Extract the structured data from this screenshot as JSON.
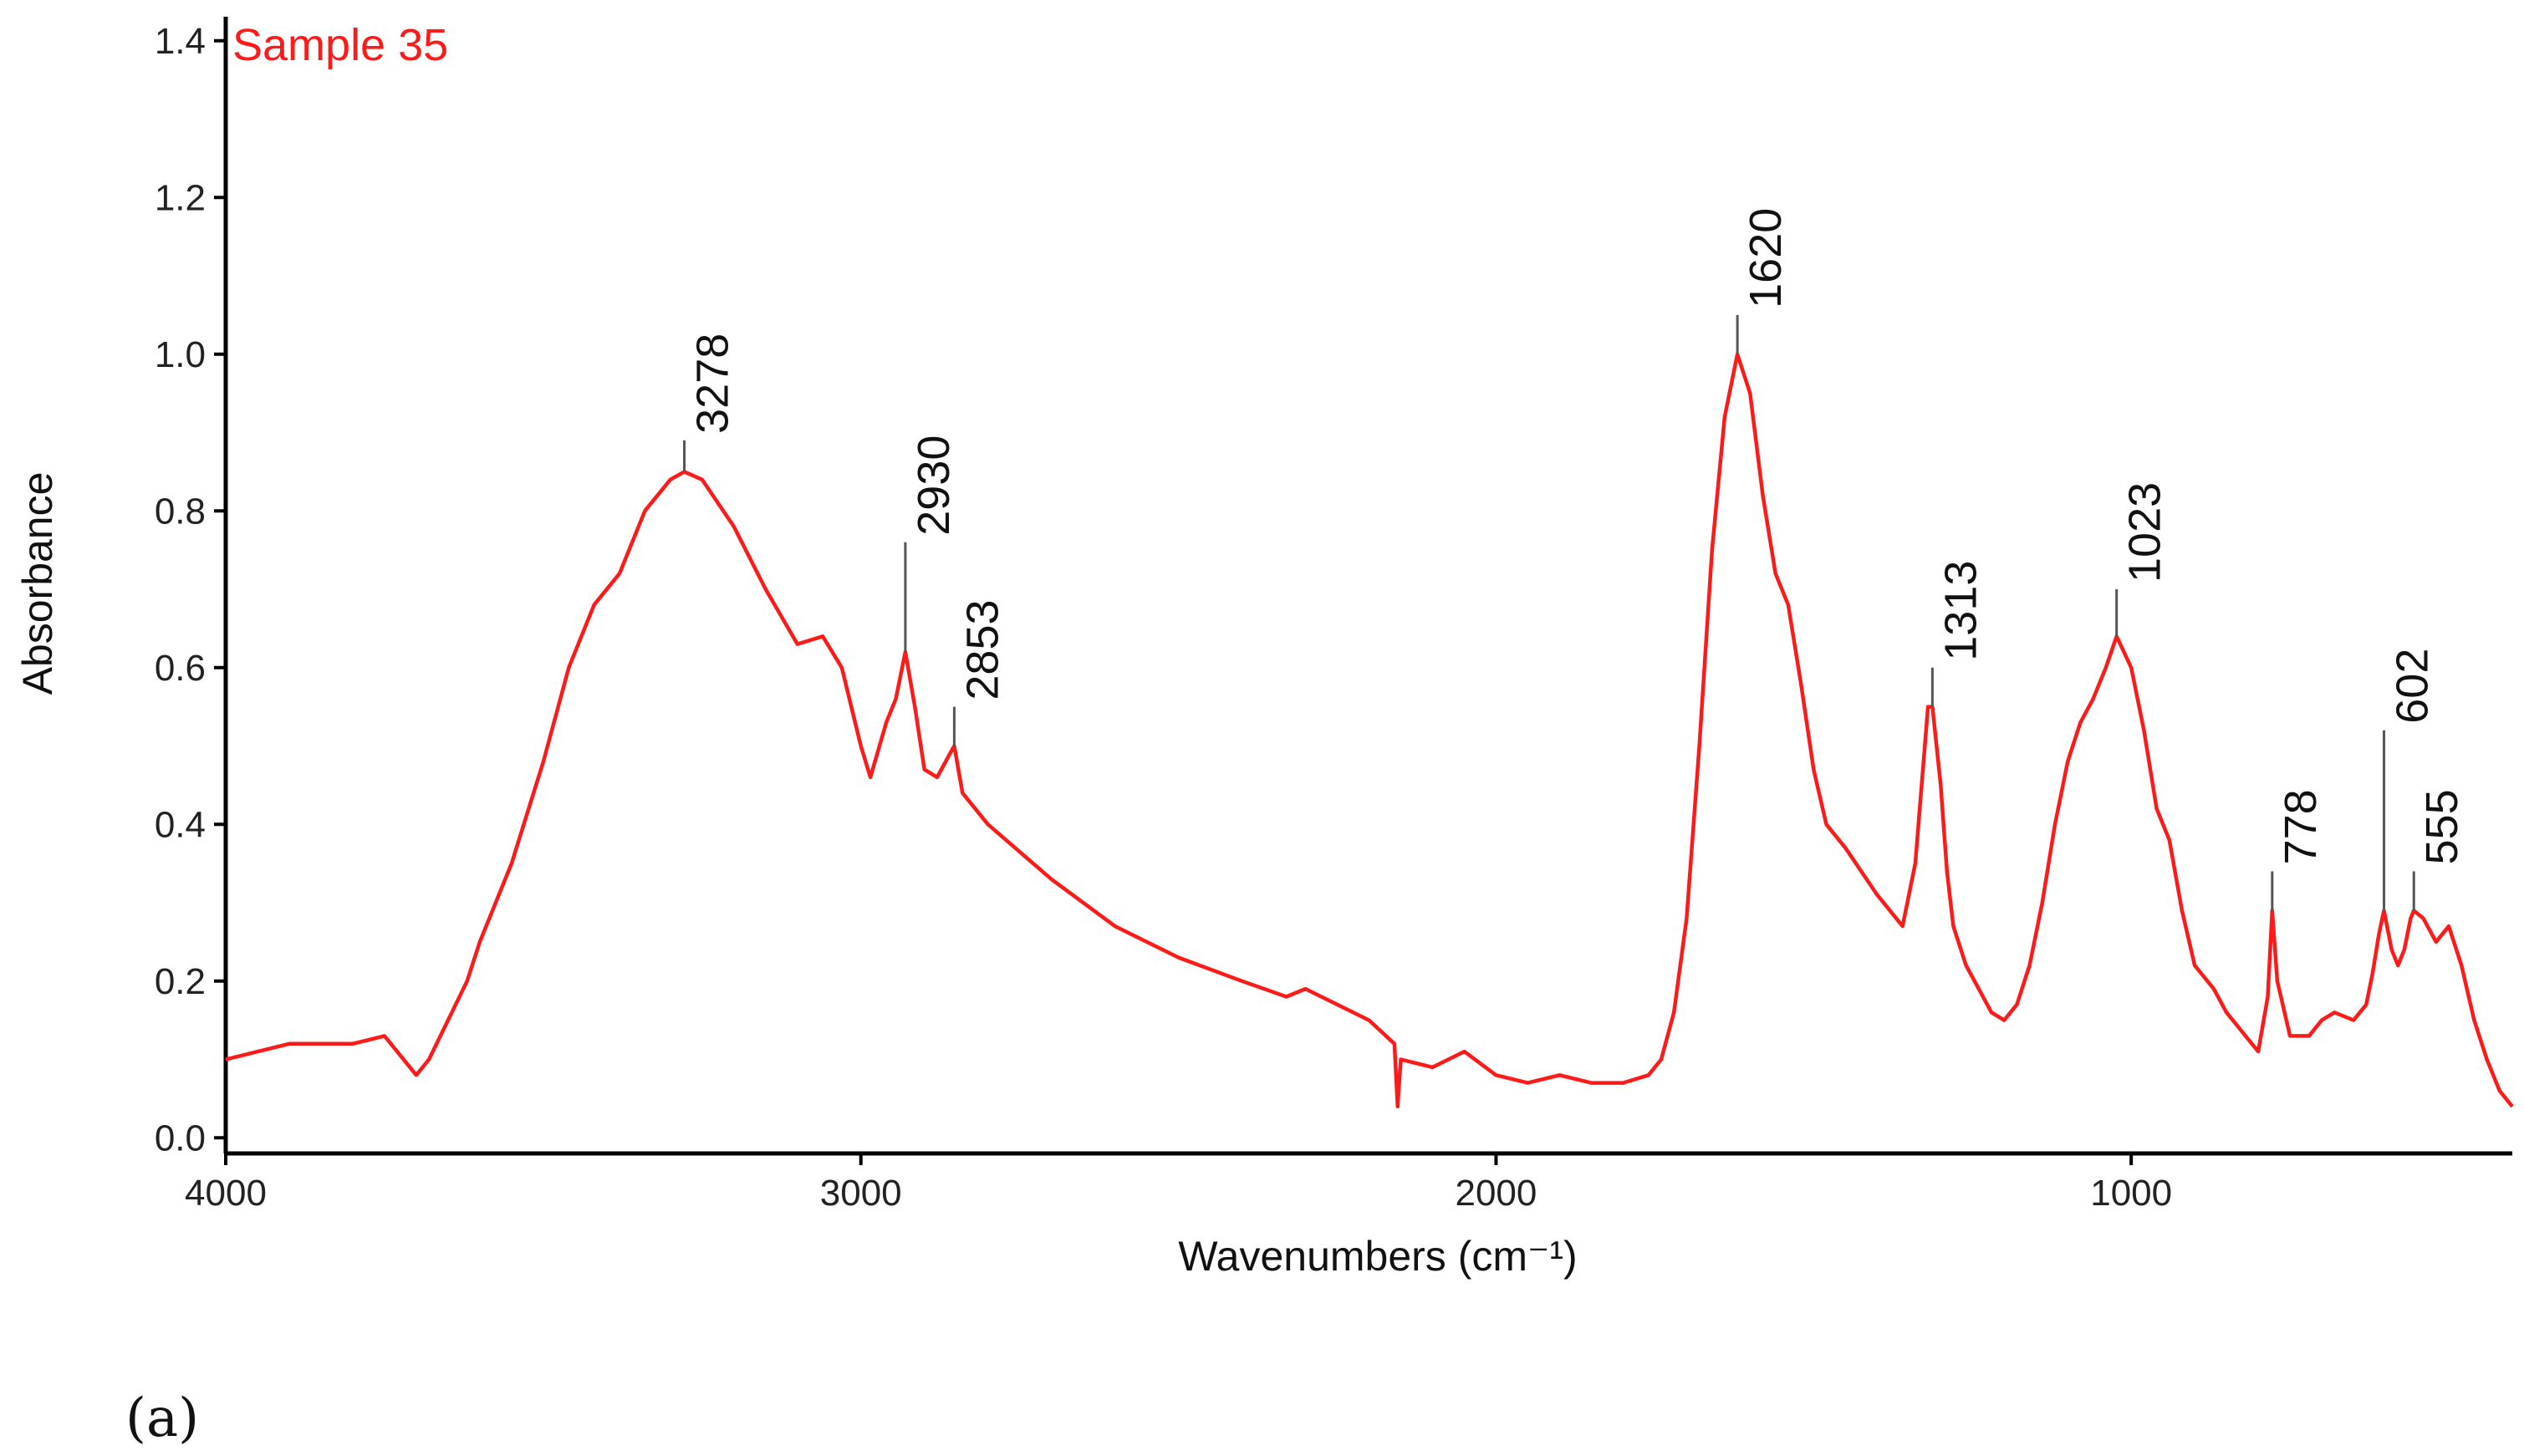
{
  "chart_data": {
    "type": "line",
    "title": "",
    "xlabel": "Wavenumbers (cm⁻¹)",
    "ylabel": "Absorbance",
    "xlim": [
      4000,
      400
    ],
    "ylim": [
      -0.02,
      1.42
    ],
    "x_ticks": [
      "4000",
      "3000",
      "2000",
      "1000"
    ],
    "x_tick_values": [
      4000,
      3000,
      2000,
      1000
    ],
    "y_ticks": [
      "0.0",
      "0.2",
      "0.4",
      "0.6",
      "0.8",
      "1.0",
      "1.2",
      "1.4"
    ],
    "y_tick_values": [
      0.0,
      0.2,
      0.4,
      0.6,
      0.8,
      1.0,
      1.2,
      1.4
    ],
    "grid": false,
    "series": [
      {
        "name": "Sample 35",
        "color": "#ff1a1a",
        "x": [
          4000,
          3900,
          3800,
          3750,
          3700,
          3680,
          3650,
          3620,
          3600,
          3550,
          3500,
          3460,
          3420,
          3380,
          3340,
          3300,
          3278,
          3250,
          3200,
          3150,
          3100,
          3060,
          3030,
          3000,
          2985,
          2960,
          2945,
          2930,
          2915,
          2900,
          2880,
          2860,
          2853,
          2840,
          2800,
          2700,
          2600,
          2500,
          2400,
          2330,
          2300,
          2250,
          2200,
          2160,
          2155,
          2150,
          2100,
          2050,
          2000,
          1950,
          1900,
          1850,
          1800,
          1760,
          1740,
          1720,
          1700,
          1680,
          1660,
          1640,
          1620,
          1600,
          1580,
          1560,
          1540,
          1520,
          1500,
          1480,
          1450,
          1400,
          1360,
          1340,
          1330,
          1320,
          1313,
          1300,
          1290,
          1280,
          1260,
          1240,
          1220,
          1200,
          1180,
          1160,
          1140,
          1120,
          1100,
          1080,
          1060,
          1040,
          1023,
          1000,
          980,
          960,
          940,
          920,
          900,
          870,
          850,
          820,
          800,
          785,
          778,
          770,
          750,
          720,
          700,
          680,
          650,
          630,
          620,
          610,
          602,
          590,
          580,
          570,
          560,
          555,
          540,
          520,
          500,
          480,
          460,
          440,
          420,
          400
        ],
        "y": [
          0.1,
          0.12,
          0.12,
          0.13,
          0.08,
          0.1,
          0.15,
          0.2,
          0.25,
          0.35,
          0.48,
          0.6,
          0.68,
          0.72,
          0.8,
          0.84,
          0.85,
          0.84,
          0.78,
          0.7,
          0.63,
          0.64,
          0.6,
          0.5,
          0.46,
          0.53,
          0.56,
          0.62,
          0.55,
          0.47,
          0.46,
          0.49,
          0.5,
          0.44,
          0.4,
          0.33,
          0.27,
          0.23,
          0.2,
          0.18,
          0.19,
          0.17,
          0.15,
          0.12,
          0.04,
          0.1,
          0.09,
          0.11,
          0.08,
          0.07,
          0.08,
          0.07,
          0.07,
          0.08,
          0.1,
          0.16,
          0.28,
          0.5,
          0.75,
          0.92,
          1.0,
          0.95,
          0.82,
          0.72,
          0.68,
          0.58,
          0.47,
          0.4,
          0.37,
          0.31,
          0.27,
          0.35,
          0.45,
          0.55,
          0.55,
          0.45,
          0.34,
          0.27,
          0.22,
          0.19,
          0.16,
          0.15,
          0.17,
          0.22,
          0.3,
          0.4,
          0.48,
          0.53,
          0.56,
          0.6,
          0.64,
          0.6,
          0.52,
          0.42,
          0.38,
          0.29,
          0.22,
          0.19,
          0.16,
          0.13,
          0.11,
          0.18,
          0.29,
          0.2,
          0.13,
          0.13,
          0.15,
          0.16,
          0.15,
          0.17,
          0.21,
          0.26,
          0.29,
          0.24,
          0.22,
          0.24,
          0.28,
          0.29,
          0.28,
          0.25,
          0.27,
          0.22,
          0.15,
          0.1,
          0.06,
          0.04
        ]
      }
    ],
    "peaks": [
      {
        "label": "3278",
        "x": 3278,
        "y_top": 0.89,
        "y_bottom": 0.85
      },
      {
        "label": "2930",
        "x": 2930,
        "y_top": 0.76,
        "y_bottom": 0.62
      },
      {
        "label": "2853",
        "x": 2853,
        "y_top": 0.55,
        "y_bottom": 0.5
      },
      {
        "label": "1620",
        "x": 1620,
        "y_top": 1.05,
        "y_bottom": 1.0
      },
      {
        "label": "1313",
        "x": 1313,
        "y_top": 0.6,
        "y_bottom": 0.55
      },
      {
        "label": "1023",
        "x": 1023,
        "y_top": 0.7,
        "y_bottom": 0.64
      },
      {
        "label": "778",
        "x": 778,
        "y_top": 0.34,
        "y_bottom": 0.29
      },
      {
        "label": "602",
        "x": 602,
        "y_top": 0.52,
        "y_bottom": 0.29
      },
      {
        "label": "555",
        "x": 555,
        "y_top": 0.34,
        "y_bottom": 0.29
      }
    ],
    "series_label": "Sample 35"
  },
  "panel_label": "(a)"
}
